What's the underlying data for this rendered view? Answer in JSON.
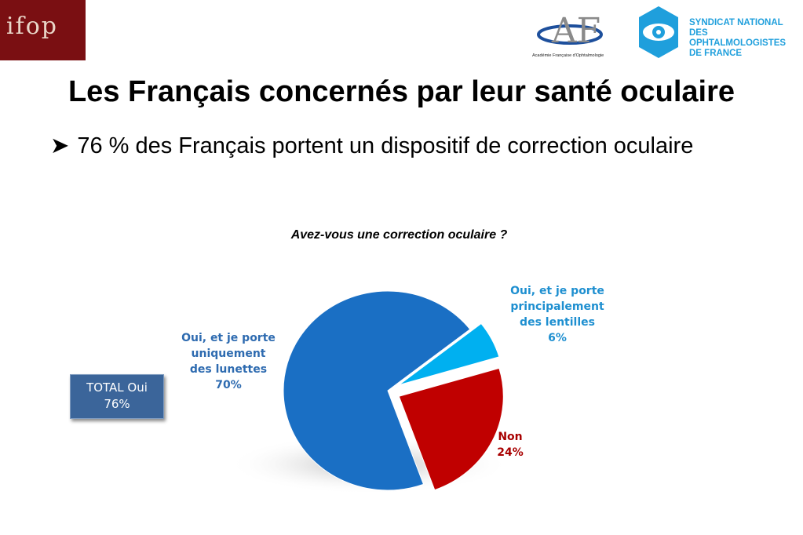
{
  "logos": {
    "ifop": "ifop",
    "af_mark": "AF",
    "af_caption": "Académie Française d'Ophtalmologie",
    "snof_lines": [
      "SYNDICAT NATIONAL",
      "DES OPHTALMOLOGISTES",
      "DE FRANCE"
    ]
  },
  "title": "Les Français concernés par leur santé oculaire",
  "subtitle": "76 % des Français portent un dispositif de correction oculaire",
  "total_box": {
    "line1": "TOTAL Oui",
    "line2": "76%"
  },
  "colors": {
    "lunettes": "#1a6fc4",
    "lentilles": "#00b0f0",
    "non": "#c00000",
    "label_blue": "#2e6bb0",
    "label_cyan": "#1e8fd0",
    "label_red": "#a80000",
    "total_box": "#3b659a"
  },
  "chart_data": {
    "type": "pie",
    "title": "Avez-vous une correction oculaire ?",
    "slices": [
      {
        "name": "Oui, et je porte uniquement des lunettes",
        "label_lines": [
          "Oui, et je porte",
          "uniquement",
          "des lunettes"
        ],
        "value": 70,
        "value_label": "70%"
      },
      {
        "name": "Oui, et je porte principalement des lentilles",
        "label_lines": [
          "Oui, et je porte",
          "principalement",
          "des lentilles"
        ],
        "value": 6,
        "value_label": "6%",
        "exploded": true
      },
      {
        "name": "Non",
        "label_lines": [
          "Non"
        ],
        "value": 24,
        "value_label": "24%",
        "exploded": true
      }
    ]
  }
}
